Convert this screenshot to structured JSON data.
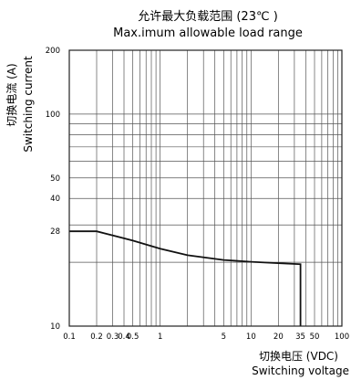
{
  "chart_data": {
    "type": "line",
    "title": "允许最大负载范围 (23℃ )",
    "subtitle": "Max.imum allowable load range",
    "xlabel_cn": "切换电压 (VDC)",
    "xlabel_en": "Switching voltage",
    "ylabel_cn": "切换电流 (A)",
    "ylabel_en": "Switching current",
    "x_scale": "log",
    "y_scale": "log",
    "xlim": [
      0.1,
      100
    ],
    "ylim": [
      10,
      200
    ],
    "grid": true,
    "x_ticks": [
      {
        "v": 0.1,
        "label": "0.1"
      },
      {
        "v": 0.2,
        "label": "0.2"
      },
      {
        "v": 0.3,
        "label": "0.3"
      },
      {
        "v": 0.4,
        "label": "0.4"
      },
      {
        "v": 0.5,
        "label": "0.5"
      },
      {
        "v": 1,
        "label": "1"
      },
      {
        "v": 5,
        "label": "5"
      },
      {
        "v": 10,
        "label": "10"
      },
      {
        "v": 20,
        "label": "20"
      },
      {
        "v": 35,
        "label": "35"
      },
      {
        "v": 50,
        "label": "50"
      },
      {
        "v": 100,
        "label": "100"
      }
    ],
    "y_ticks": [
      {
        "v": 10,
        "label": "10"
      },
      {
        "v": 28,
        "label": "28"
      },
      {
        "v": 40,
        "label": "40"
      },
      {
        "v": 50,
        "label": "50"
      },
      {
        "v": 100,
        "label": "100"
      },
      {
        "v": 200,
        "label": "200"
      }
    ],
    "x_grid": [
      0.2,
      0.3,
      0.4,
      0.5,
      0.6,
      0.7,
      0.8,
      0.9,
      1,
      2,
      3,
      4,
      5,
      6,
      7,
      8,
      9,
      10,
      20,
      30,
      40,
      50,
      60,
      70,
      80,
      90
    ],
    "y_grid": [
      20,
      30,
      40,
      50,
      60,
      70,
      80,
      90,
      100
    ],
    "series": [
      {
        "x": [
          0.1,
          0.2,
          0.5,
          1,
          2,
          5,
          10,
          20,
          35,
          35
        ],
        "y": [
          28,
          28,
          25.3,
          23.2,
          21.6,
          20.5,
          20.1,
          19.8,
          19.6,
          10
        ]
      }
    ]
  }
}
